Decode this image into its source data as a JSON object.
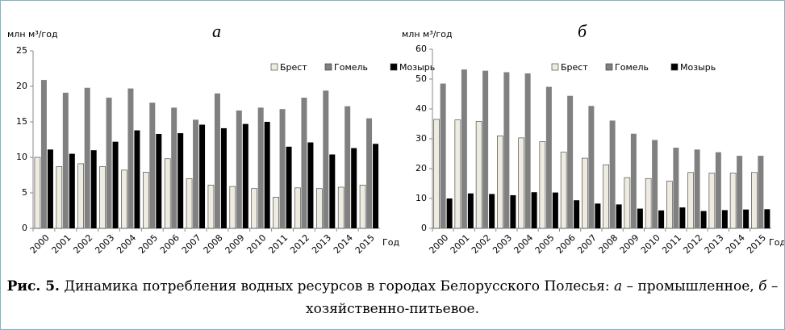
{
  "chart_data": [
    {
      "type": "bar",
      "title": "а",
      "y_label": "млн м³/год",
      "x_label": "Год",
      "categories": [
        "2000",
        "2001",
        "2002",
        "2003",
        "2004",
        "2005",
        "2006",
        "2007",
        "2008",
        "2009",
        "2010",
        "2011",
        "2012",
        "2013",
        "2014",
        "2015"
      ],
      "series": [
        {
          "name": "Брест",
          "color": "#eeece1",
          "values": [
            10.0,
            8.7,
            9.1,
            8.7,
            8.2,
            7.9,
            9.8,
            7.0,
            6.1,
            5.9,
            5.6,
            4.4,
            5.7,
            5.6,
            5.8,
            6.1
          ]
        },
        {
          "name": "Гомель",
          "color": "#808080",
          "values": [
            20.9,
            19.1,
            19.8,
            18.4,
            19.7,
            17.7,
            17.0,
            15.3,
            19.0,
            16.6,
            17.0,
            16.8,
            18.4,
            19.4,
            17.2,
            15.5
          ]
        },
        {
          "name": "Мозырь",
          "color": "#000000",
          "values": [
            11.1,
            10.5,
            11.0,
            12.2,
            13.8,
            13.3,
            13.4,
            14.6,
            14.1,
            14.7,
            15.0,
            11.5,
            12.1,
            10.4,
            11.3,
            11.9
          ]
        }
      ],
      "ylim": [
        0,
        25
      ],
      "yticks": [
        0,
        5,
        10,
        15,
        20,
        25
      ],
      "grid": false
    },
    {
      "type": "bar",
      "title": "б",
      "y_label": "млн м³/год",
      "x_label": "Год",
      "categories": [
        "2000",
        "2001",
        "2002",
        "2003",
        "2004",
        "2005",
        "2006",
        "2007",
        "2008",
        "2009",
        "2010",
        "2011",
        "2012",
        "2013",
        "2014",
        "2015"
      ],
      "series": [
        {
          "name": "Брест",
          "color": "#eeece1",
          "values": [
            36.5,
            36.3,
            35.8,
            31.0,
            30.3,
            29.0,
            25.5,
            23.5,
            21.3,
            17.0,
            16.7,
            15.8,
            18.7,
            18.5,
            18.5,
            18.7
          ]
        },
        {
          "name": "Гомель",
          "color": "#808080",
          "values": [
            48.5,
            53.2,
            52.8,
            52.3,
            51.9,
            47.4,
            44.4,
            41.0,
            36.1,
            31.7,
            29.6,
            27.0,
            26.4,
            25.5,
            24.3,
            24.3
          ]
        },
        {
          "name": "Мозырь",
          "color": "#000000",
          "values": [
            10.0,
            11.7,
            11.5,
            11.1,
            12.1,
            12.0,
            9.4,
            8.3,
            8.0,
            6.6,
            6.0,
            7.0,
            5.8,
            6.1,
            6.3,
            6.4
          ]
        }
      ],
      "ylim": [
        0,
        60
      ],
      "yticks": [
        0,
        10,
        20,
        30,
        40,
        50,
        60
      ],
      "grid": false
    }
  ],
  "caption": {
    "label": "Рис. 5.",
    "text1": " Динамика потребления водных ресурсов в городах Белорусского Полесья: ",
    "letter1": "а",
    "text2": " – промышленное, ",
    "letter2": "б",
    "text3": " – хозяйственно-питьевое."
  }
}
